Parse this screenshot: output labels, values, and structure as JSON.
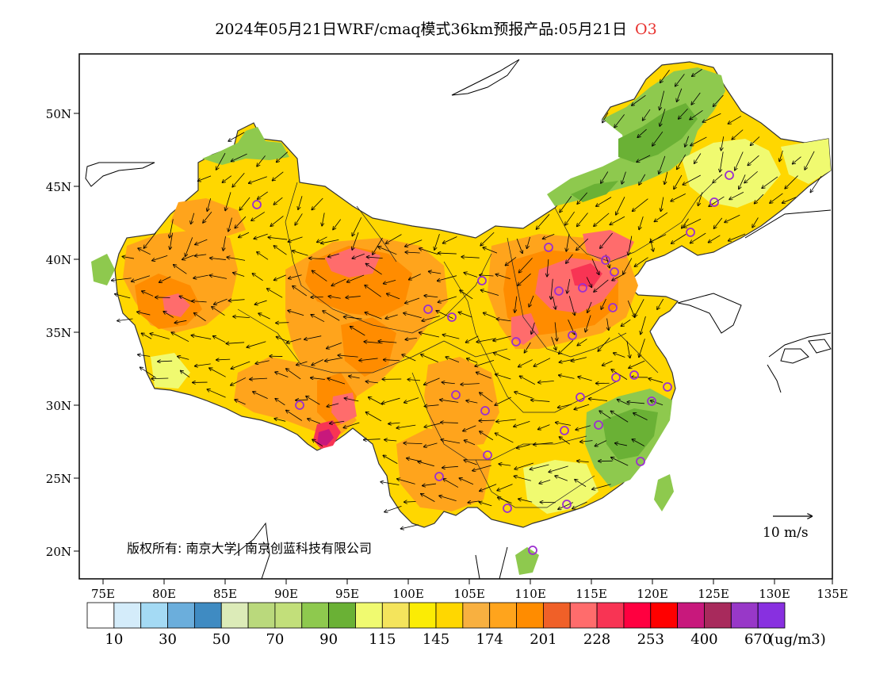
{
  "title": {
    "text": "2024年05月21日WRF/cmaq模式36km预报产品:05月21日",
    "pollutant": "O3"
  },
  "map": {
    "lon_ticks": [
      "75E",
      "80E",
      "85E",
      "90E",
      "95E",
      "100E",
      "105E",
      "110E",
      "115E",
      "120E",
      "125E",
      "130E",
      "135E"
    ],
    "lat_ticks": [
      "50N",
      "45N",
      "40N",
      "35N",
      "30N",
      "25N",
      "20N"
    ],
    "copyright": "版权所有: 南京大学| 南京创蓝科技有限公司",
    "wind_reference": "10 m/s"
  },
  "legend": {
    "colors": [
      "#ffffff",
      "#d4ecfa",
      "#a4daf4",
      "#6baedc",
      "#3f8bc2",
      "#dcebb8",
      "#bad97c",
      "#c2df7a",
      "#8ec94e",
      "#6ab135",
      "#f0fa70",
      "#f4e45c",
      "#fbec04",
      "#ffd700",
      "#f8b040",
      "#ffa41c",
      "#ff8c00",
      "#f06028",
      "#ff6c6c",
      "#f83454",
      "#ff0040",
      "#ff0000",
      "#c8187c",
      "#a82a5c",
      "#9838c8",
      "#8830e0"
    ],
    "labels": [
      "10",
      "30",
      "50",
      "70",
      "90",
      "115",
      "145",
      "174",
      "201",
      "228",
      "253",
      "400",
      "670"
    ],
    "unit": "(ug/m3)"
  }
}
